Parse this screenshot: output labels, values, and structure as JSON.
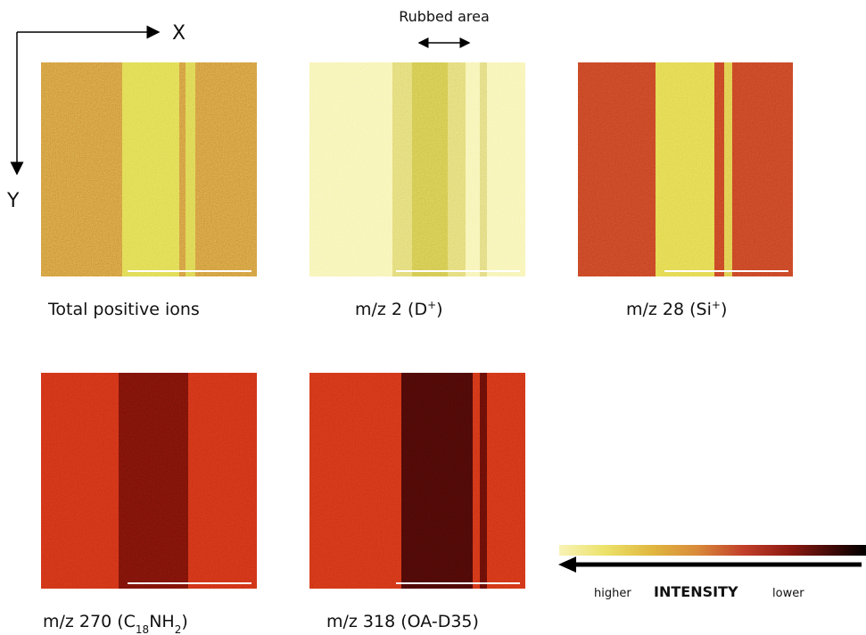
{
  "axes": {
    "x": "X",
    "y": "Y",
    "rubbed": "Rubbed area"
  },
  "panels": [
    {
      "caption": [
        {
          "text": "Total positive ions"
        }
      ]
    },
    {
      "caption": [
        {
          "text": "m/z 2 (D"
        },
        {
          "sup": "+"
        },
        {
          "text": ")"
        }
      ]
    },
    {
      "caption": [
        {
          "text": "m/z 28 (Si"
        },
        {
          "sup": "+"
        },
        {
          "text": ")"
        }
      ]
    },
    {
      "caption": [
        {
          "text": "m/z 270 (C"
        },
        {
          "sub": "18"
        },
        {
          "text": "NH"
        },
        {
          "sub": "2"
        },
        {
          "text": ")"
        }
      ]
    },
    {
      "caption": [
        {
          "text": "m/z 318 (OA-D35)"
        }
      ]
    }
  ],
  "legend": {
    "higher": "higher",
    "title": "INTENSITY",
    "lower": "lower"
  }
}
